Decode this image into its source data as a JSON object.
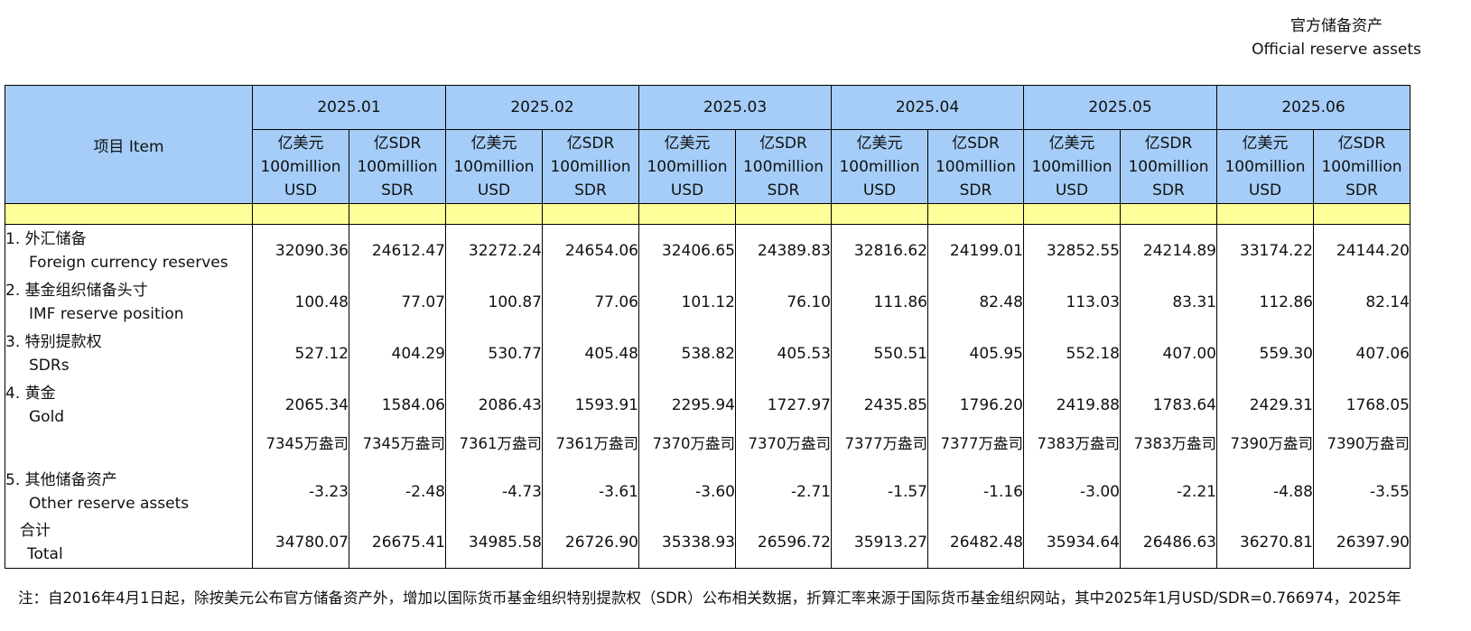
{
  "title": {
    "zh": "官方储备资产",
    "en": "Official reserve assets"
  },
  "header": {
    "item_label": "项目  Item",
    "months": [
      "2025.01",
      "2025.02",
      "2025.03",
      "2025.04",
      "2025.05",
      "2025.06"
    ],
    "unit_usd": [
      "亿美元",
      "100million",
      "USD"
    ],
    "unit_sdr": [
      "亿SDR",
      "100million",
      "SDR"
    ]
  },
  "rows": [
    {
      "zh": "1. 外汇储备",
      "en": "Foreign currency reserves",
      "values": [
        "32090.36",
        "24612.47",
        "32272.24",
        "24654.06",
        "32406.65",
        "24389.83",
        "32816.62",
        "24199.01",
        "32852.55",
        "24214.89",
        "33174.22",
        "24144.20"
      ]
    },
    {
      "zh": "2. 基金组织储备头寸",
      "en": "IMF reserve position",
      "values": [
        "100.48",
        "77.07",
        "100.87",
        "77.06",
        "101.12",
        "76.10",
        "111.86",
        "82.48",
        "113.03",
        "83.31",
        "112.86",
        "82.14"
      ]
    },
    {
      "zh": "3. 特别提款权",
      "en": "SDRs",
      "values": [
        "527.12",
        "404.29",
        "530.77",
        "405.48",
        "538.82",
        "405.53",
        "550.51",
        "405.95",
        "552.18",
        "407.00",
        "559.30",
        "407.06"
      ]
    },
    {
      "zh": "4. 黄金",
      "en": "Gold",
      "values": [
        "2065.34",
        "1584.06",
        "2086.43",
        "1593.91",
        "2295.94",
        "1727.97",
        "2435.85",
        "1796.20",
        "2419.88",
        "1783.64",
        "2429.31",
        "1768.05"
      ]
    },
    {
      "zh": "",
      "en": "",
      "values": [
        "7345万盎司",
        "7345万盎司",
        "7361万盎司",
        "7361万盎司",
        "7370万盎司",
        "7370万盎司",
        "7377万盎司",
        "7377万盎司",
        "7383万盎司",
        "7383万盎司",
        "7390万盎司",
        "7390万盎司"
      ]
    },
    {
      "zh": "5. 其他储备资产",
      "en": "Other reserve assets",
      "values": [
        "-3.23",
        "-2.48",
        "-4.73",
        "-3.61",
        "-3.60",
        "-2.71",
        "-1.57",
        "-1.16",
        "-3.00",
        "-2.21",
        "-4.88",
        "-3.55"
      ]
    },
    {
      "zh": "合计",
      "en": "Total",
      "values": [
        "34780.07",
        "26675.41",
        "34985.58",
        "26726.90",
        "35338.93",
        "26596.72",
        "35913.27",
        "26482.48",
        "35934.64",
        "26486.63",
        "36270.81",
        "26397.90"
      ]
    }
  ],
  "note": "注：自2016年4月1日起，除按美元公布官方储备资产外，增加以国际货币基金组织特别提款权（SDR）公布相关数据，折算汇率来源于国际货币基金组织网站，其中2025年1月USD/SDR=0.766974，2025年"
}
